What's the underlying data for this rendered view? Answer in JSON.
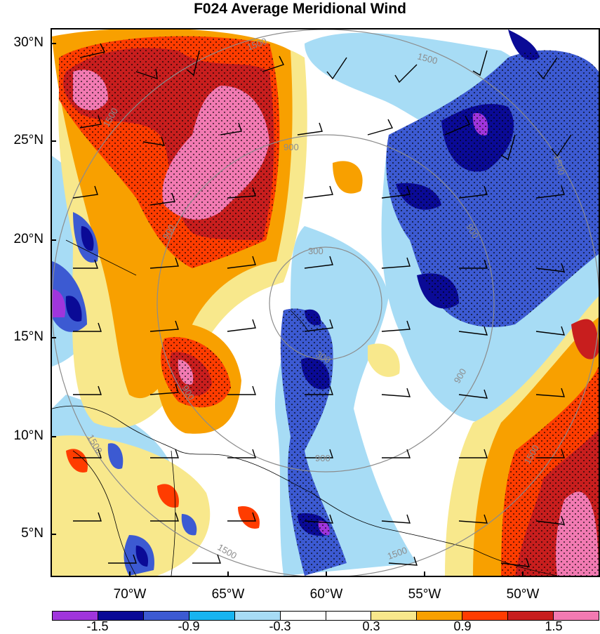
{
  "title": "F024 Average Meridional Wind",
  "lat_labels": [
    "30°N",
    "25°N",
    "20°N",
    "15°N",
    "10°N",
    "5°N"
  ],
  "lon_labels": [
    "70°W",
    "65°W",
    "60°W",
    "55°W",
    "50°W"
  ],
  "colorbar": {
    "colors": [
      "#a035dc",
      "#0a0a96",
      "#3c5ad2",
      "#17b4f0",
      "#a7dcf5",
      "#ffffff",
      "#ffffff",
      "#f8e88c",
      "#f8a000",
      "#ff3c00",
      "#c81e1e",
      "#f27ab2"
    ],
    "labels": [
      "-1.5",
      "-0.9",
      "-0.3",
      "0.3",
      "0.9",
      "1.5"
    ]
  },
  "contour_labels": [
    "1500",
    "1500",
    "1500",
    "900",
    "900",
    "900",
    "900",
    "300",
    "300",
    "900",
    "900",
    "1500",
    "1500",
    "1500",
    "1500",
    "1500"
  ],
  "map": {
    "lat_range": [
      3,
      30.5
    ],
    "lon_range": [
      -74,
      -46.5
    ],
    "land_color": "#000000",
    "contour_color": "#8c8c8c",
    "barb_color": "#000000"
  }
}
